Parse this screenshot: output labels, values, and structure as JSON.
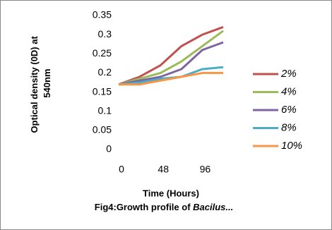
{
  "chart_data": {
    "type": "line",
    "title": [
      "Fig4:Growth profile of",
      "Bacilus..."
    ],
    "x_label": "Time (Hours)",
    "y_label": [
      "Optical density (0D) at",
      "540nm"
    ],
    "x": [
      0,
      24,
      48,
      72,
      96,
      120
    ],
    "xlim": [
      0,
      120
    ],
    "xticks": [
      0,
      48,
      96
    ],
    "ylim": [
      0,
      0.35
    ],
    "yticks": [
      0,
      0.05,
      0.1,
      0.15,
      0.2,
      0.25,
      0.3,
      0.35
    ],
    "grid": false,
    "legend": "right",
    "series": [
      {
        "name": "2%",
        "color": "#c0504d",
        "values": [
          0.17,
          0.19,
          0.22,
          0.27,
          0.3,
          0.32
        ]
      },
      {
        "name": "4%",
        "color": "#9bbb59",
        "values": [
          0.17,
          0.185,
          0.2,
          0.23,
          0.27,
          0.31
        ]
      },
      {
        "name": "6%",
        "color": "#8064a2",
        "values": [
          0.17,
          0.18,
          0.19,
          0.21,
          0.26,
          0.28
        ]
      },
      {
        "name": "8%",
        "color": "#4bacc6",
        "values": [
          0.17,
          0.175,
          0.185,
          0.19,
          0.21,
          0.215
        ]
      },
      {
        "name": "10%",
        "color": "#f79646",
        "values": [
          0.17,
          0.17,
          0.18,
          0.19,
          0.2,
          0.2
        ]
      }
    ]
  }
}
